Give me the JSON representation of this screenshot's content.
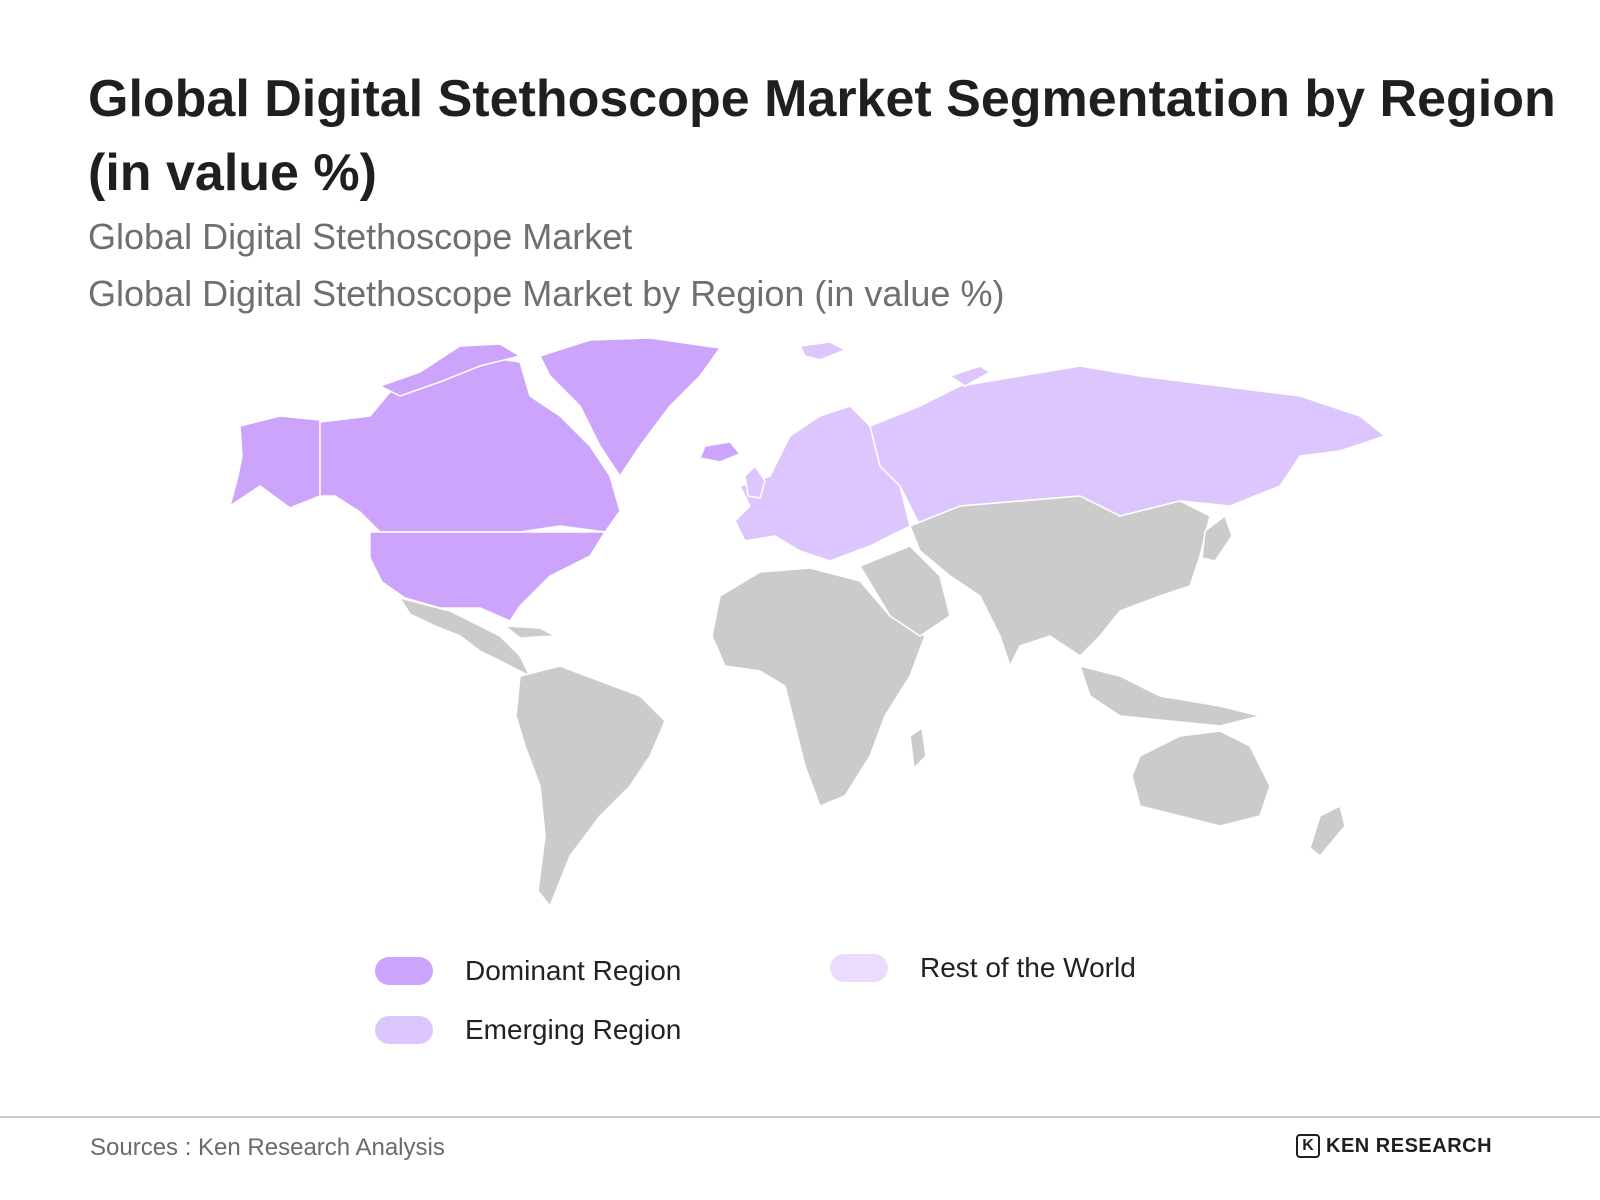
{
  "title": "Global Digital Stethoscope Market Segmentation by Region (in value %)",
  "subtitle1": "Global Digital Stethoscope Market",
  "subtitle2": "Global Digital Stethoscope Market by Region (in value %)",
  "colors": {
    "dominant": "#cca4fb",
    "emerging": "#dcc6fd",
    "rest": "#eadcfe",
    "other_countries": "#cbcbcb",
    "borders": "#ffffff"
  },
  "map": {
    "dominant_region": "North America (United States, Canada, Alaska, Greenland)",
    "emerging_region": "Europe and Russia",
    "other": "Rest of world shown in grey"
  },
  "legend": [
    {
      "label": "Dominant Region",
      "color": "#cca4fb"
    },
    {
      "label": "Rest of the World",
      "color": "#eadcfe"
    },
    {
      "label": "Emerging Region",
      "color": "#dcc6fd"
    }
  ],
  "source": "Sources : Ken Research Analysis",
  "logo": {
    "mark": "K",
    "text": "KEN RESEARCH"
  }
}
